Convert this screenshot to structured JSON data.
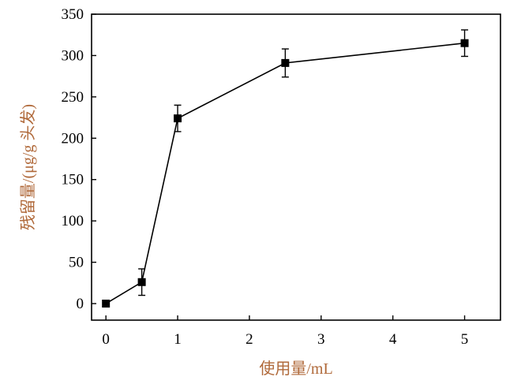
{
  "chart_data": {
    "type": "line",
    "title": "",
    "xlabel": "使用量/mL",
    "ylabel": "残留量/(μg/g 头发)",
    "xlim": [
      -0.2,
      5.5
    ],
    "ylim": [
      -20,
      350
    ],
    "xticks": [
      0,
      1,
      2,
      3,
      4,
      5
    ],
    "yticks": [
      0,
      50,
      100,
      150,
      200,
      250,
      300,
      350
    ],
    "x_tick_labels": [
      "0",
      "1",
      "2",
      "3",
      "4",
      "5"
    ],
    "y_tick_labels": [
      "0",
      "50",
      "100",
      "150",
      "200",
      "250",
      "300",
      "350"
    ],
    "grid": false,
    "legend": "none",
    "series": [
      {
        "x": [
          0,
          0.5,
          1,
          2.5,
          5
        ],
        "y": [
          0,
          26,
          224,
          291,
          315
        ],
        "error": [
          0,
          16,
          16,
          17,
          16
        ],
        "marker": "square",
        "color": "#000000"
      }
    ],
    "label_color": "#b0693a"
  }
}
